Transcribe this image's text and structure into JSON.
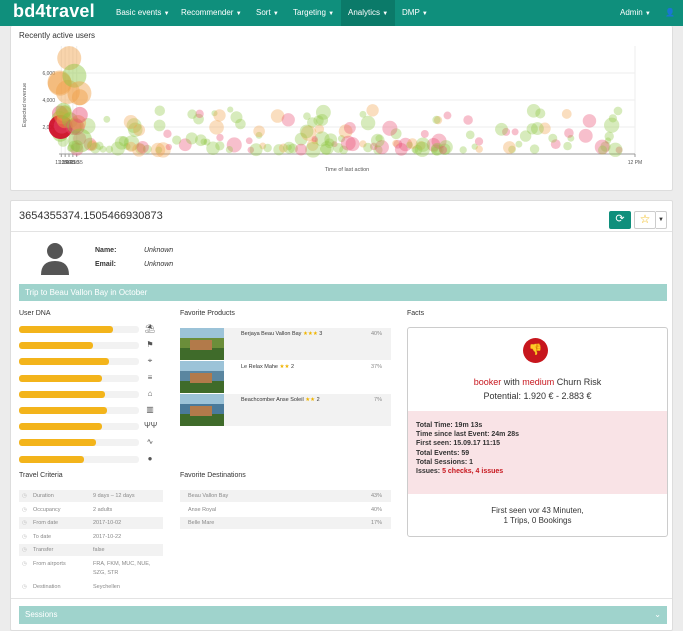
{
  "nav": {
    "brand": "bd4travel",
    "items": [
      "Basic events",
      "Recommender",
      "Sort",
      "Targeting",
      "Analytics",
      "DMP"
    ],
    "active": "Analytics",
    "admin": "Admin",
    "user_icon": "user-icon",
    "accent": "#0f8f7c"
  },
  "chart": {
    "title": "Recently active users"
  },
  "chart_data": {
    "type": "scatter",
    "title": "Recently active users",
    "xlabel": "Time of last action",
    "ylabel": "Expected revenue",
    "x_ticks": [
      "11:35",
      "11:40",
      "11:45",
      "11:50",
      "11:55",
      "12 PM"
    ],
    "y_ticks": [
      "2,000",
      "4,000",
      "6,000"
    ],
    "xlim": [
      "11:32",
      "12:00"
    ],
    "ylim": [
      0,
      8000
    ],
    "grid": true,
    "colors": {
      "green": "#8cc63f",
      "red": "#e8486e",
      "orange": "#f0a048",
      "dark_red": "#d0102a"
    },
    "points": [
      {
        "x": "11:32.6",
        "y": 5300,
        "size": 3,
        "color": "orange"
      },
      {
        "x": "11:33.1",
        "y": 5200,
        "size": 3,
        "color": "orange"
      },
      {
        "x": "11:33.2",
        "y": 3000,
        "size": 2,
        "color": "red"
      },
      {
        "x": "11:32.7",
        "y": 2600,
        "size": 2,
        "color": "green"
      },
      {
        "x": "11:33.6",
        "y": 1500,
        "size": 2,
        "color": "green"
      },
      {
        "x": "11:34.1",
        "y": 2000,
        "size": 3,
        "color": "dark_red"
      },
      {
        "x": "11:35.9",
        "y": 2800,
        "size": 2,
        "color": "orange"
      },
      {
        "x": "11:35.6",
        "y": 2100,
        "size": 2,
        "color": "red"
      },
      {
        "x": "11:38.5",
        "y": 3000,
        "size": 2,
        "color": "orange"
      },
      {
        "x": "11:39.3",
        "y": 2500,
        "size": 2,
        "color": "orange"
      },
      {
        "x": "11:37.8",
        "y": 3200,
        "size": 2,
        "color": "green"
      },
      {
        "x": "11:43.5",
        "y": 4600,
        "size": 3,
        "color": "orange"
      },
      {
        "x": "11:45.3",
        "y": 7100,
        "size": 3,
        "color": "orange"
      },
      {
        "x": "11:46.2",
        "y": 2500,
        "size": 2,
        "color": "green"
      },
      {
        "x": "11:51.0",
        "y": 2000,
        "size": 2,
        "color": "red"
      },
      {
        "x": "11:52.0",
        "y": 5800,
        "size": 3,
        "color": "green"
      },
      {
        "x": "11:52.8",
        "y": 2100,
        "size": 2,
        "color": "green"
      },
      {
        "x": "11:55.0",
        "y": 2000,
        "size": 2,
        "color": "red"
      },
      {
        "x": "11:56.8",
        "y": 2300,
        "size": 2,
        "color": "orange"
      },
      {
        "x": "11:58.5",
        "y": 4500,
        "size": 3,
        "color": "orange"
      },
      {
        "x": "11:59.2",
        "y": 4200,
        "size": 2,
        "color": "orange"
      },
      {
        "x": "11:59.5",
        "y": 1000,
        "size": 3,
        "color": "green"
      },
      {
        "x": "11:59.0",
        "y": 2900,
        "size": 2,
        "color": "red"
      }
    ]
  },
  "user": {
    "id": "3654355374.1505466930873",
    "name_label": "Name:",
    "name_value": "Unknown",
    "email_label": "Email:",
    "email_value": "Unknown",
    "trip_title": "Trip to Beau Vallon Bay in October"
  },
  "user_dna": {
    "title": "User DNA",
    "bars": [
      {
        "value": 0.78,
        "icon": "beach-umbrella-icon",
        "glyph": "⛱"
      },
      {
        "value": 0.62,
        "icon": "signpost-icon",
        "glyph": "⚑"
      },
      {
        "value": 0.75,
        "icon": "map-pin-icon",
        "glyph": "⌖"
      },
      {
        "value": 0.69,
        "icon": "ladder-icon",
        "glyph": "≡"
      },
      {
        "value": 0.72,
        "icon": "hotel-bed-icon",
        "glyph": "⌂"
      },
      {
        "value": 0.73,
        "icon": "building-icon",
        "glyph": "▥"
      },
      {
        "value": 0.69,
        "icon": "restaurant-icon",
        "glyph": "ΨΨ"
      },
      {
        "value": 0.64,
        "icon": "wellness-icon",
        "glyph": "∿"
      },
      {
        "value": 0.54,
        "icon": "piggy-bank-icon",
        "glyph": "●"
      }
    ]
  },
  "travel_criteria": {
    "title": "Travel Criteria",
    "rows": [
      {
        "key": "Duration",
        "value": "9 days – 12 days"
      },
      {
        "key": "Occupancy",
        "value": "2 adults"
      },
      {
        "key": "From date",
        "value": "2017-10-02"
      },
      {
        "key": "To date",
        "value": "2017-10-22"
      },
      {
        "key": "Transfer",
        "value": "false"
      },
      {
        "key": "From airports",
        "value": "FRA, FKM, MUC, NUE,"
      },
      {
        "key": "",
        "value": "SZG, STR"
      },
      {
        "key": "Destination",
        "value": "Seychellen"
      }
    ]
  },
  "favorite_products": {
    "title": "Favorite Products",
    "items": [
      {
        "name": "Berjaya Beau Vallon Bay",
        "stars": "★★★",
        "rating": "3",
        "pct": "40%",
        "img_color": "#6b8e3a"
      },
      {
        "name": "Le Relax Mahe",
        "stars": "★★",
        "rating": "2",
        "pct": "37%",
        "img_color": "#5a86a0"
      },
      {
        "name": "Beachcomber Anse Soleil",
        "stars": "★★",
        "rating": "2",
        "pct": "7%",
        "img_color": "#4a7a9a"
      }
    ]
  },
  "favorite_destinations": {
    "title": "Favorite Destinations",
    "items": [
      {
        "name": "Beau Vallon Bay",
        "pct": "43%"
      },
      {
        "name": "Anse Royal",
        "pct": "40%"
      },
      {
        "name": "Belle Mare",
        "pct": "17%"
      }
    ]
  },
  "facts": {
    "title": "Facts",
    "segment": "booker",
    "with": "with",
    "risk_level": "medium",
    "risk_label": "Churn Risk",
    "potential": "Potential: 1.920 € - 2.883 €",
    "stats": [
      {
        "label": "Total Time:",
        "value": "19m 13s"
      },
      {
        "label": "Time since last Event:",
        "value": "24m 28s"
      },
      {
        "label": "First seen:",
        "value": "15.09.17 11:15"
      },
      {
        "label": "Total Events:",
        "value": "59"
      },
      {
        "label": "Total Sessions:",
        "value": "1"
      },
      {
        "label": "Issues:",
        "value": "5 checks, 4 issues"
      }
    ],
    "footer_line1": "First seen vor 43 Minuten,",
    "footer_line2": "1 Trips, 0 Bookings"
  },
  "sessions": {
    "title": "Sessions"
  }
}
